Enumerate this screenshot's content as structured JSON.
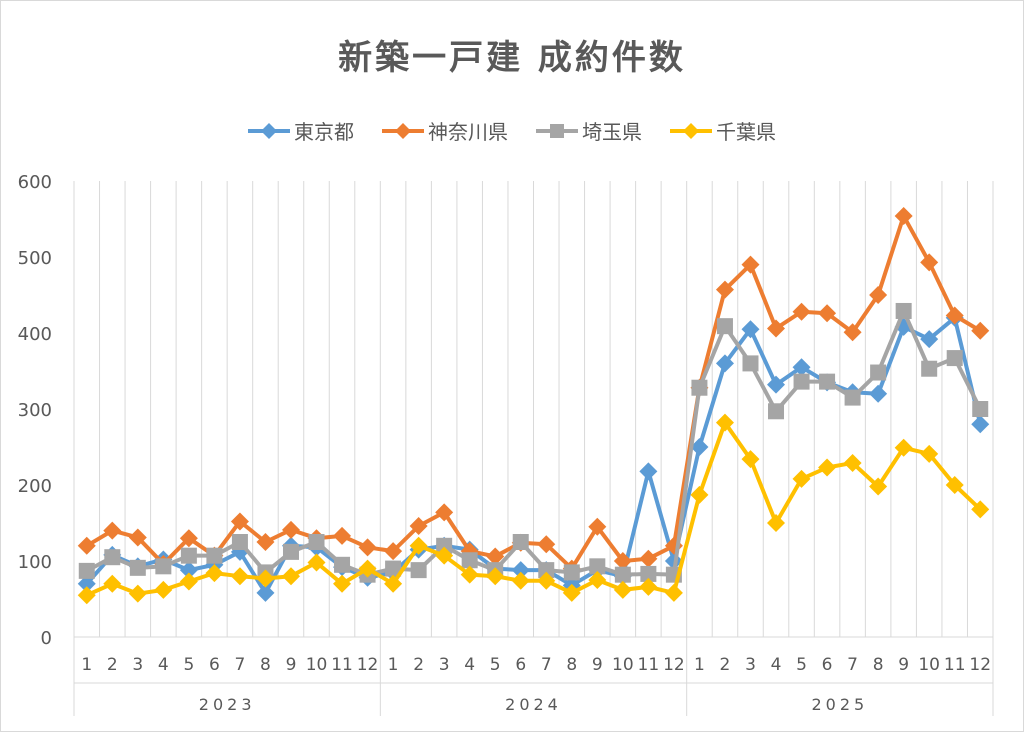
{
  "chart_data": {
    "type": "line",
    "title": "新築一戸建 成約件数",
    "xlabel": "",
    "ylabel": "",
    "ylim": [
      0,
      600
    ],
    "yticks": [
      0,
      100,
      200,
      300,
      400,
      500,
      600
    ],
    "grid": "vertical",
    "legend_position": "top",
    "years": [
      "2023",
      "2024",
      "2025"
    ],
    "months": [
      "1",
      "2",
      "3",
      "4",
      "5",
      "6",
      "7",
      "8",
      "9",
      "10",
      "11",
      "12"
    ],
    "series": [
      {
        "name": "東京都",
        "color": "#5b9bd5",
        "marker": "diamond",
        "values": [
          70,
          108,
          93,
          102,
          88,
          95,
          112,
          58,
          120,
          118,
          92,
          78,
          85,
          115,
          120,
          115,
          90,
          88,
          88,
          68,
          88,
          80,
          218,
          100,
          250,
          360,
          405,
          332,
          355,
          335,
          322,
          320,
          408,
          392,
          420,
          280
        ]
      },
      {
        "name": "神奈川県",
        "color": "#ed7d31",
        "marker": "diamond",
        "values": [
          120,
          140,
          131,
          96,
          130,
          107,
          152,
          125,
          141,
          130,
          133,
          118,
          113,
          146,
          164,
          113,
          106,
          124,
          122,
          90,
          145,
          100,
          103,
          120,
          328,
          457,
          490,
          406,
          428,
          426,
          401,
          450,
          554,
          493,
          423,
          403
        ]
      },
      {
        "name": "埼玉県",
        "color": "#a5a5a5",
        "marker": "square",
        "values": [
          87,
          105,
          91,
          93,
          107,
          107,
          125,
          85,
          112,
          125,
          95,
          82,
          90,
          88,
          120,
          101,
          88,
          125,
          88,
          85,
          93,
          82,
          83,
          82,
          328,
          409,
          360,
          297,
          336,
          336,
          315,
          348,
          429,
          353,
          367,
          300
        ]
      },
      {
        "name": "千葉県",
        "color": "#ffc000",
        "marker": "diamond",
        "values": [
          55,
          70,
          57,
          62,
          73,
          84,
          80,
          77,
          80,
          98,
          70,
          90,
          70,
          120,
          107,
          82,
          80,
          74,
          74,
          58,
          75,
          62,
          66,
          58,
          187,
          282,
          234,
          150,
          208,
          223,
          229,
          198,
          249,
          241,
          200,
          168
        ]
      }
    ]
  }
}
